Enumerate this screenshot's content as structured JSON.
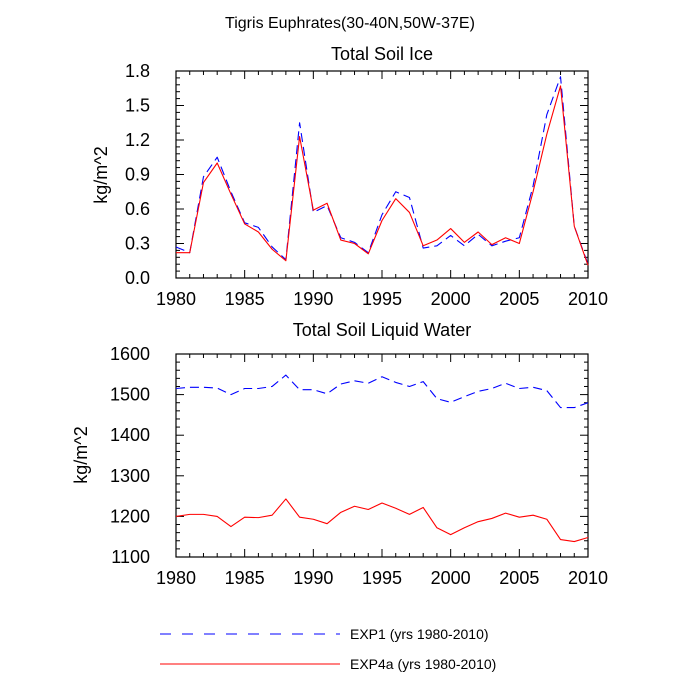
{
  "page": {
    "suptitle": "Tigris Euphrates(30-40N,50W-37E)"
  },
  "colors": {
    "exp1": "#0000ff",
    "exp4a": "#ff0000",
    "axis": "#000000"
  },
  "chart_data": [
    {
      "type": "line",
      "title": "Total Soil Ice",
      "xlabel": "",
      "ylabel": "kg/m^2",
      "xlim": [
        1980,
        2010
      ],
      "ylim": [
        0.0,
        1.8
      ],
      "xticks": [
        1980,
        1985,
        1990,
        1995,
        2000,
        2005,
        2010
      ],
      "xtick_labels": [
        "1980",
        "1985",
        "1990",
        "1995",
        "2000",
        "2005",
        "2010"
      ],
      "yticks": [
        0.0,
        0.3,
        0.6,
        0.9,
        1.2,
        1.5,
        1.8
      ],
      "ytick_labels": [
        "0.0",
        "0.3",
        "0.6",
        "0.9",
        "1.2",
        "1.5",
        "1.8"
      ],
      "x": [
        1980,
        1981,
        1982,
        1983,
        1984,
        1985,
        1986,
        1987,
        1988,
        1989,
        1990,
        1991,
        1992,
        1993,
        1994,
        1995,
        1996,
        1997,
        1998,
        1999,
        2000,
        2001,
        2002,
        2003,
        2004,
        2005,
        2006,
        2007,
        2008,
        2009,
        2010
      ],
      "series": [
        {
          "name": "EXP1 (yrs 1980-2010)",
          "style": "dashed",
          "values": [
            0.27,
            0.22,
            0.88,
            1.05,
            0.75,
            0.48,
            0.44,
            0.27,
            0.16,
            1.35,
            0.57,
            0.63,
            0.35,
            0.31,
            0.22,
            0.55,
            0.75,
            0.7,
            0.26,
            0.28,
            0.37,
            0.28,
            0.38,
            0.28,
            0.32,
            0.35,
            0.8,
            1.42,
            1.75,
            0.45,
            0.12
          ]
        },
        {
          "name": "EXP4a (yrs 1980-2010)",
          "style": "solid",
          "values": [
            0.22,
            0.22,
            0.83,
            1.0,
            0.73,
            0.47,
            0.4,
            0.25,
            0.15,
            1.23,
            0.59,
            0.65,
            0.33,
            0.3,
            0.21,
            0.5,
            0.69,
            0.57,
            0.28,
            0.33,
            0.43,
            0.31,
            0.4,
            0.29,
            0.35,
            0.3,
            0.75,
            1.25,
            1.67,
            0.45,
            0.11
          ]
        }
      ]
    },
    {
      "type": "line",
      "title": "Total Soil Liquid Water",
      "xlabel": "",
      "ylabel": "kg/m^2",
      "xlim": [
        1980,
        2010
      ],
      "ylim": [
        1100,
        1600
      ],
      "xticks": [
        1980,
        1985,
        1990,
        1995,
        2000,
        2005,
        2010
      ],
      "xtick_labels": [
        "1980",
        "1985",
        "1990",
        "1995",
        "2000",
        "2005",
        "2010"
      ],
      "yticks": [
        1100,
        1200,
        1300,
        1400,
        1500,
        1600
      ],
      "ytick_labels": [
        "1100",
        "1200",
        "1300",
        "1400",
        "1500",
        "1600"
      ],
      "x": [
        1980,
        1981,
        1982,
        1983,
        1984,
        1985,
        1986,
        1987,
        1988,
        1989,
        1990,
        1991,
        1992,
        1993,
        1994,
        1995,
        1996,
        1997,
        1998,
        1999,
        2000,
        2001,
        2002,
        2003,
        2004,
        2005,
        2006,
        2007,
        2008,
        2009,
        2010
      ],
      "series": [
        {
          "name": "EXP1 (yrs 1980-2010)",
          "style": "dashed",
          "values": [
            1515,
            1518,
            1518,
            1516,
            1500,
            1515,
            1515,
            1520,
            1548,
            1512,
            1512,
            1502,
            1526,
            1534,
            1528,
            1544,
            1530,
            1520,
            1532,
            1490,
            1481,
            1495,
            1508,
            1515,
            1528,
            1515,
            1518,
            1510,
            1468,
            1468,
            1480
          ]
        },
        {
          "name": "EXP4a (yrs 1980-2010)",
          "style": "solid",
          "values": [
            1200,
            1205,
            1205,
            1200,
            1175,
            1198,
            1197,
            1203,
            1243,
            1198,
            1193,
            1182,
            1210,
            1225,
            1217,
            1233,
            1220,
            1205,
            1222,
            1172,
            1155,
            1172,
            1187,
            1195,
            1208,
            1198,
            1203,
            1193,
            1143,
            1138,
            1148
          ]
        }
      ]
    }
  ],
  "legend": {
    "placement": "bottom",
    "items": [
      {
        "label": "EXP1 (yrs 1980-2010)",
        "style": "dashed",
        "color": "#0000ff"
      },
      {
        "label": "EXP4a (yrs 1980-2010)",
        "style": "solid",
        "color": "#ff0000"
      }
    ]
  }
}
